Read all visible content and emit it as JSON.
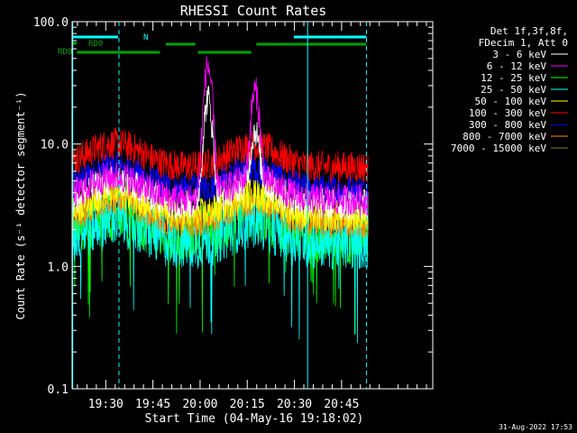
{
  "chart_data": {
    "type": "line",
    "title": "RHESSI Count Rates",
    "xlabel": "Start Time (04-May-16 19:18:02)",
    "ylabel": "Count Rate (s⁻¹ detector segment⁻¹)",
    "yscale": "log",
    "ylim": [
      0.1,
      100
    ],
    "xlim_minutes": [
      19.3,
      78.0
    ],
    "x_ticks": [
      {
        "label": "19:30",
        "minute": 30
      },
      {
        "label": "19:45",
        "minute": 45
      },
      {
        "label": "20:00",
        "minute": 60
      },
      {
        "label": "20:15",
        "minute": 75
      },
      {
        "label": "20:30",
        "minute": 90
      },
      {
        "label": "20:45",
        "minute": 105
      }
    ],
    "y_ticks": [
      {
        "label": "0.1",
        "value": 0.1
      },
      {
        "label": "1.0",
        "value": 1.0
      },
      {
        "label": "10.0",
        "value": 10.0
      },
      {
        "label": "100.0",
        "value": 100.0
      }
    ],
    "legend_header": [
      "Det 1f,3f,8f,",
      "FDecim 1, Att 0"
    ],
    "legend_placement": "right",
    "series": [
      {
        "name": "3 - 6 keV",
        "color": "#ffffff",
        "base": 3.2,
        "peaks": [
          [
            62.5,
            20
          ],
          [
            77.5,
            8
          ]
        ]
      },
      {
        "name": "6 - 12 keV",
        "color": "#ff00ff",
        "base": 3.5,
        "peaks": [
          [
            62.5,
            40
          ],
          [
            77.5,
            22
          ]
        ]
      },
      {
        "name": "12 - 25 keV",
        "color": "#00ff00",
        "base": 1.8,
        "peaks": []
      },
      {
        "name": "25 - 50 keV",
        "color": "#00ffff",
        "base": 1.6,
        "peaks": []
      },
      {
        "name": "50 - 100 keV",
        "color": "#ffff00",
        "base": 2.6,
        "peaks": []
      },
      {
        "name": "100 - 300 keV",
        "color": "#ff0000",
        "base": 6.5,
        "peaks": []
      },
      {
        "name": "300 - 800 keV",
        "color": "#0000ff",
        "base": 4.2,
        "peaks": []
      },
      {
        "name": "800 - 7000 keV",
        "color": "#ff8c00",
        "base": 2.3,
        "peaks": []
      },
      {
        "name": "7000 - 15000 keV",
        "color": "#7f7f00",
        "base": 0,
        "peaks": []
      }
    ],
    "annotations": [
      {
        "text": "N",
        "color": "#00ffff"
      },
      {
        "text": "RD0",
        "color": "#00a000"
      },
      {
        "text": "RD0",
        "color": "#00a000"
      }
    ],
    "footer": "31-Aug-2022 17:53"
  }
}
